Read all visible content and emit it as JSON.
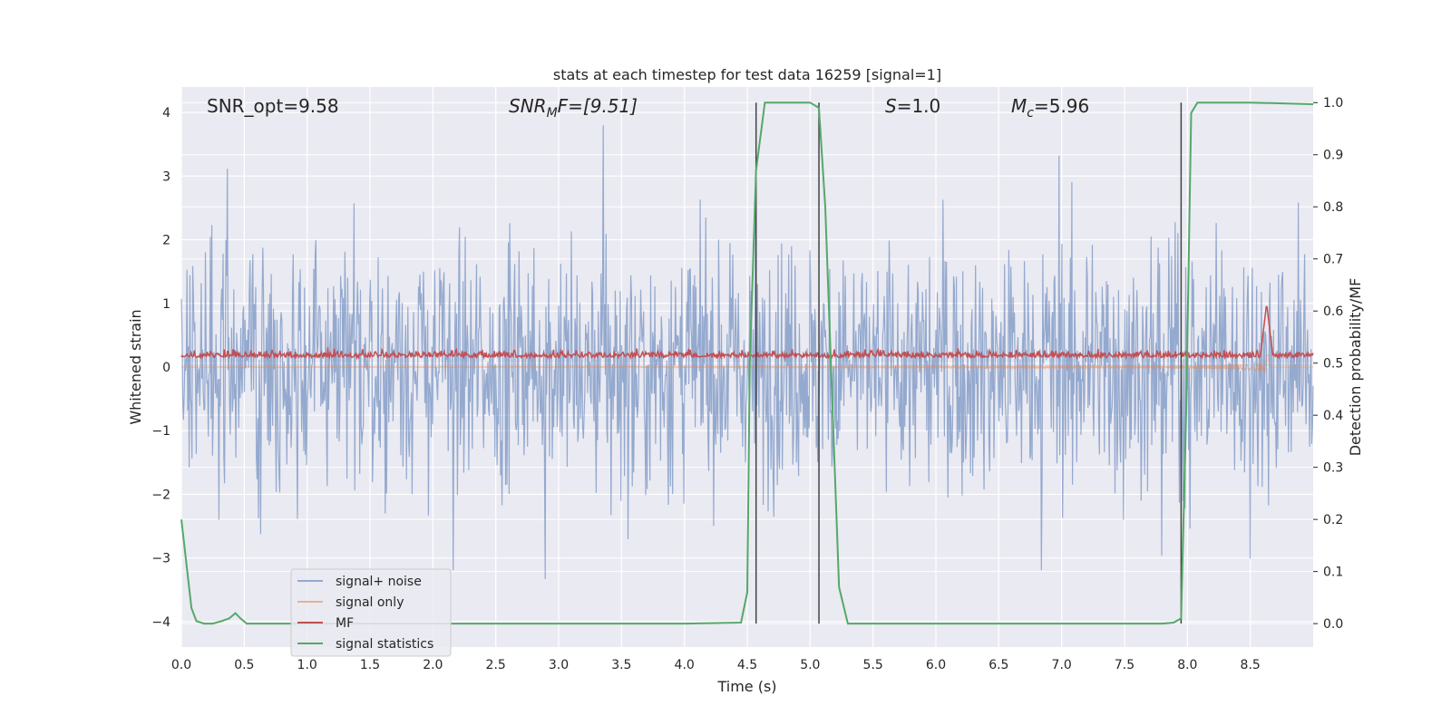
{
  "chart_data": {
    "type": "line",
    "title": "stats at each timestep for test data 16259 [signal=1]",
    "xlabel": "Time (s)",
    "ylabel": "Whitened strain",
    "y2label": "Detection probability/MF",
    "xlim": [
      0,
      9.0
    ],
    "ylim": [
      -4.4,
      4.4
    ],
    "y2lim": [
      -0.045,
      1.03
    ],
    "x_ticks": [
      "0.0",
      "0.5",
      "1.0",
      "1.5",
      "2.0",
      "2.5",
      "3.0",
      "3.5",
      "4.0",
      "4.5",
      "5.0",
      "5.5",
      "6.0",
      "6.5",
      "7.0",
      "7.5",
      "8.0",
      "8.5"
    ],
    "y_ticks": [
      "4",
      "3",
      "2",
      "1",
      "0",
      "−1",
      "−2",
      "−3",
      "−4"
    ],
    "y2_ticks": [
      "1.0",
      "0.9",
      "0.8",
      "0.7",
      "0.6",
      "0.5",
      "0.4",
      "0.3",
      "0.2",
      "0.1",
      "0.0"
    ],
    "grid": true,
    "annotations": {
      "snr_opt": "SNR_opt=9.58",
      "snr_mf_sym": "SNR",
      "snr_mf_sub": "M",
      "snr_mf_rest": "F=[9.51]",
      "s_sym": "S",
      "s_rest": "=1.0",
      "mc_sym": "M",
      "mc_sub": "c",
      "mc_rest": "=5.96"
    },
    "vertical_lines_x": [
      4.57,
      5.07,
      7.95
    ],
    "legend_placement": "lower-left",
    "series": [
      {
        "name": "signal+ noise",
        "color": "#4c72b0",
        "axis": "left",
        "noise_amplitude_typical": 1.5,
        "noise_peak": 3.8
      },
      {
        "name": "signal only",
        "color": "#dd8452",
        "axis": "left",
        "chirp_start_x": 4.5,
        "merger_x": 8.63,
        "merger_amplitude": 1.1
      },
      {
        "name": "MF",
        "color": "#c44e52",
        "axis": "left",
        "baseline": 0.15,
        "peak_x": 8.63,
        "peak_value": 1.0
      },
      {
        "name": "signal statistics",
        "color": "#55a868",
        "axis": "right",
        "x": [
          0.0,
          0.08,
          0.12,
          0.18,
          0.25,
          0.32,
          0.38,
          0.43,
          0.47,
          0.52,
          0.6,
          1.0,
          2.0,
          3.0,
          4.0,
          4.45,
          4.5,
          4.52,
          4.57,
          4.64,
          4.7,
          4.8,
          5.0,
          5.07,
          5.12,
          5.18,
          5.23,
          5.3,
          6.0,
          7.0,
          7.8,
          7.89,
          7.95,
          7.99,
          8.03,
          8.08,
          8.2,
          8.5,
          9.0
        ],
        "y": [
          0.2,
          0.03,
          0.005,
          0.0,
          0.0,
          0.005,
          0.01,
          0.02,
          0.01,
          0.0,
          0.0,
          0.0,
          0.0,
          0.0,
          0.0,
          0.002,
          0.06,
          0.5,
          0.87,
          1.0,
          1.0,
          1.0,
          1.0,
          0.99,
          0.8,
          0.4,
          0.07,
          0.0,
          0.0,
          0.0,
          0.0,
          0.002,
          0.01,
          0.4,
          0.98,
          1.0,
          1.0,
          1.0,
          0.997
        ]
      }
    ]
  }
}
